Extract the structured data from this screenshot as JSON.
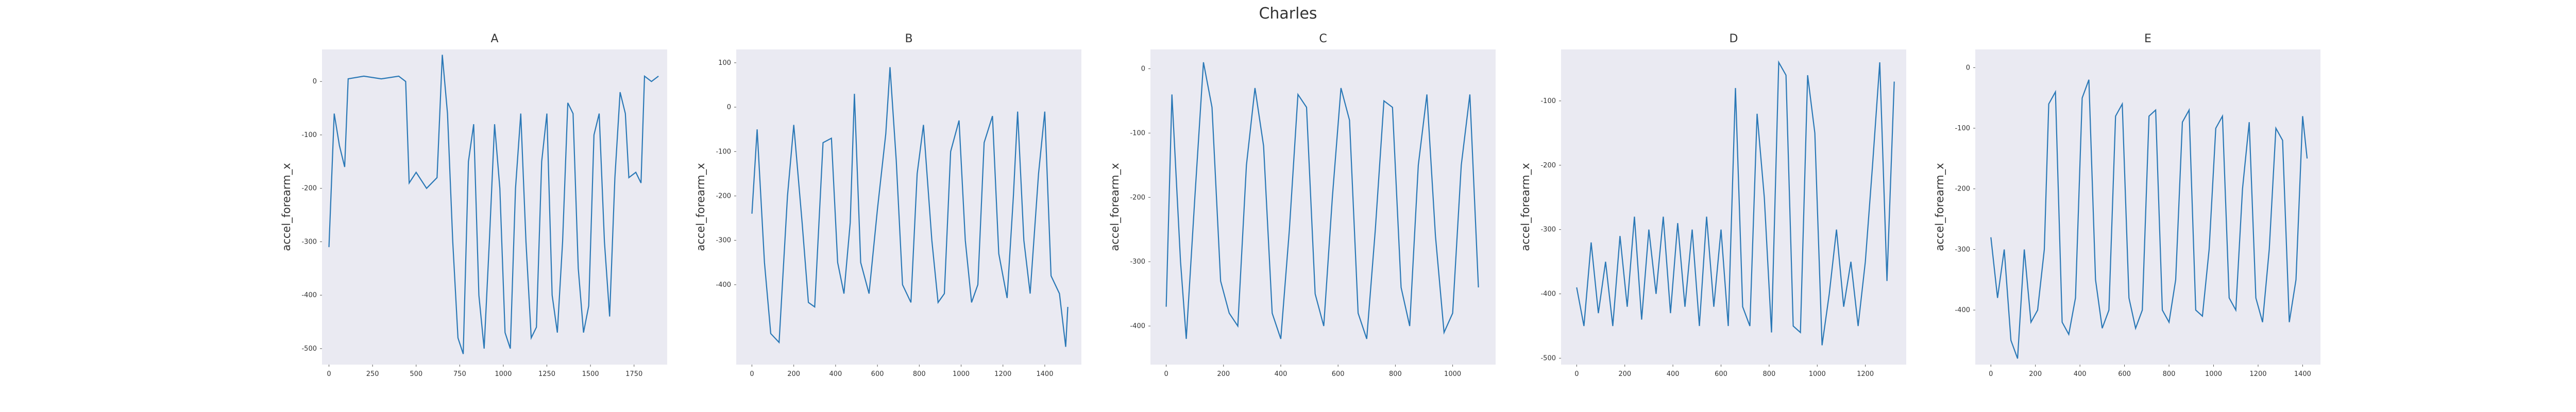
{
  "title": "Charles",
  "chart_data": [
    {
      "type": "line",
      "title": "A",
      "y_label": "accel_forearm_x",
      "color": "#2a78b6",
      "xlim": [
        -40,
        1940
      ],
      "ylim": [
        -530,
        60
      ],
      "xticks": [
        0,
        250,
        500,
        750,
        1000,
        1250,
        1500,
        1750
      ],
      "yticks": [
        -500,
        -400,
        -300,
        -200,
        -100,
        0
      ],
      "x": [
        0,
        30,
        60,
        90,
        110,
        200,
        300,
        400,
        440,
        460,
        500,
        560,
        620,
        650,
        680,
        710,
        740,
        770,
        800,
        830,
        860,
        890,
        920,
        950,
        980,
        1010,
        1040,
        1070,
        1100,
        1130,
        1160,
        1190,
        1220,
        1250,
        1280,
        1310,
        1340,
        1370,
        1400,
        1430,
        1460,
        1490,
        1520,
        1550,
        1580,
        1610,
        1640,
        1670,
        1700,
        1720,
        1760,
        1790,
        1810,
        1850,
        1890
      ],
      "values": [
        -310,
        -60,
        -120,
        -160,
        5,
        10,
        5,
        10,
        0,
        -190,
        -170,
        -200,
        -180,
        50,
        -60,
        -300,
        -480,
        -510,
        -150,
        -80,
        -400,
        -500,
        -300,
        -80,
        -200,
        -470,
        -500,
        -200,
        -60,
        -300,
        -480,
        -460,
        -150,
        -60,
        -400,
        -470,
        -300,
        -40,
        -60,
        -350,
        -470,
        -420,
        -100,
        -60,
        -300,
        -440,
        -180,
        -20,
        -60,
        -180,
        -170,
        -190,
        10,
        0,
        10
      ]
    },
    {
      "type": "line",
      "title": "B",
      "y_label": "accel_forearm_x",
      "color": "#2a78b6",
      "xlim": [
        -75,
        1575
      ],
      "ylim": [
        -580,
        130
      ],
      "xticks": [
        0,
        200,
        400,
        600,
        800,
        1000,
        1200,
        1400
      ],
      "yticks": [
        -400,
        -300,
        -200,
        -100,
        0,
        100
      ],
      "x": [
        0,
        25,
        60,
        90,
        130,
        170,
        200,
        240,
        270,
        300,
        340,
        380,
        410,
        440,
        470,
        490,
        520,
        560,
        600,
        640,
        660,
        690,
        720,
        760,
        790,
        820,
        860,
        890,
        920,
        950,
        990,
        1020,
        1050,
        1080,
        1110,
        1150,
        1180,
        1220,
        1250,
        1270,
        1300,
        1330,
        1370,
        1400,
        1430,
        1470,
        1500,
        1510
      ],
      "values": [
        -240,
        -50,
        -350,
        -510,
        -530,
        -200,
        -40,
        -260,
        -440,
        -450,
        -80,
        -70,
        -350,
        -420,
        -260,
        30,
        -350,
        -420,
        -230,
        -60,
        90,
        -120,
        -400,
        -440,
        -150,
        -40,
        -300,
        -440,
        -420,
        -100,
        -30,
        -300,
        -440,
        -400,
        -80,
        -20,
        -330,
        -430,
        -200,
        -10,
        -300,
        -420,
        -150,
        -10,
        -380,
        -420,
        -540,
        -450
      ]
    },
    {
      "type": "line",
      "title": "C",
      "y_label": "accel_forearm_x",
      "color": "#2a78b6",
      "xlim": [
        -55,
        1150
      ],
      "ylim": [
        -460,
        30
      ],
      "xticks": [
        0,
        200,
        400,
        600,
        800,
        1000
      ],
      "yticks": [
        -400,
        -300,
        -200,
        -100,
        0
      ],
      "x": [
        0,
        20,
        50,
        70,
        100,
        130,
        160,
        190,
        220,
        250,
        280,
        310,
        340,
        370,
        400,
        430,
        460,
        490,
        520,
        550,
        580,
        610,
        640,
        670,
        700,
        730,
        760,
        790,
        820,
        850,
        880,
        910,
        940,
        970,
        1000,
        1030,
        1060,
        1090
      ],
      "values": [
        -370,
        -40,
        -300,
        -420,
        -200,
        10,
        -60,
        -330,
        -380,
        -400,
        -150,
        -30,
        -120,
        -380,
        -420,
        -250,
        -40,
        -60,
        -350,
        -400,
        -200,
        -30,
        -80,
        -380,
        -420,
        -250,
        -50,
        -60,
        -340,
        -400,
        -150,
        -40,
        -260,
        -410,
        -380,
        -150,
        -40,
        -340
      ]
    },
    {
      "type": "line",
      "title": "D",
      "y_label": "accel_forearm_x",
      "color": "#2a78b6",
      "xlim": [
        -65,
        1370
      ],
      "ylim": [
        -510,
        -20
      ],
      "xticks": [
        0,
        200,
        400,
        600,
        800,
        1000,
        1200
      ],
      "yticks": [
        -500,
        -400,
        -300,
        -200,
        -100
      ],
      "x": [
        0,
        30,
        60,
        90,
        120,
        150,
        180,
        210,
        240,
        270,
        300,
        330,
        360,
        390,
        420,
        450,
        480,
        510,
        540,
        570,
        600,
        630,
        660,
        690,
        720,
        750,
        780,
        810,
        840,
        870,
        900,
        930,
        960,
        990,
        1020,
        1050,
        1080,
        1110,
        1140,
        1170,
        1200,
        1230,
        1260,
        1290,
        1320
      ],
      "values": [
        -390,
        -450,
        -320,
        -430,
        -350,
        -450,
        -310,
        -420,
        -280,
        -440,
        -300,
        -400,
        -280,
        -430,
        -290,
        -420,
        -300,
        -450,
        -280,
        -420,
        -300,
        -450,
        -80,
        -420,
        -450,
        -120,
        -250,
        -460,
        -40,
        -60,
        -450,
        -460,
        -60,
        -150,
        -480,
        -400,
        -300,
        -420,
        -350,
        -450,
        -350,
        -200,
        -40,
        -380,
        -70
      ]
    },
    {
      "type": "line",
      "title": "E",
      "y_label": "accel_forearm_x",
      "color": "#2a78b6",
      "xlim": [
        -70,
        1480
      ],
      "ylim": [
        -490,
        30
      ],
      "xticks": [
        0,
        200,
        400,
        600,
        800,
        1000,
        1200,
        1400
      ],
      "yticks": [
        -400,
        -300,
        -200,
        -100,
        0
      ],
      "x": [
        0,
        30,
        60,
        90,
        120,
        150,
        180,
        210,
        240,
        260,
        290,
        320,
        350,
        380,
        410,
        440,
        470,
        500,
        530,
        560,
        590,
        620,
        650,
        680,
        710,
        740,
        770,
        800,
        830,
        860,
        890,
        920,
        950,
        980,
        1010,
        1040,
        1070,
        1100,
        1130,
        1160,
        1190,
        1220,
        1250,
        1280,
        1310,
        1340,
        1370,
        1400,
        1420
      ],
      "values": [
        -280,
        -380,
        -300,
        -450,
        -480,
        -300,
        -420,
        -400,
        -300,
        -60,
        -40,
        -420,
        -440,
        -380,
        -50,
        -20,
        -350,
        -430,
        -400,
        -80,
        -60,
        -380,
        -430,
        -400,
        -80,
        -70,
        -400,
        -420,
        -350,
        -90,
        -70,
        -400,
        -410,
        -300,
        -100,
        -80,
        -380,
        -400,
        -200,
        -90,
        -380,
        -420,
        -300,
        -100,
        -120,
        -420,
        -350,
        -80,
        -150
      ]
    }
  ]
}
